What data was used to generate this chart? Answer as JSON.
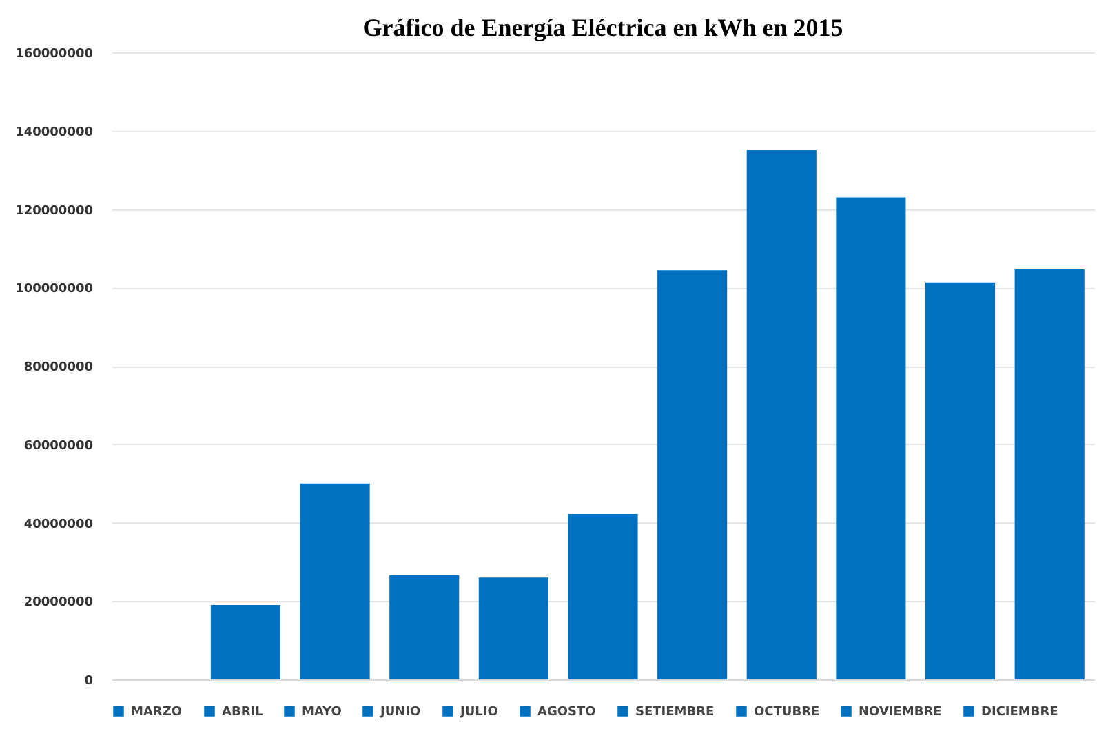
{
  "chart_data": {
    "type": "bar",
    "title": "Gráfico de Energía Eléctrica  en kWh  en 2015",
    "categories": [
      null,
      null,
      null,
      null,
      null,
      null,
      null,
      null,
      null,
      null,
      null
    ],
    "series": [
      {
        "name": "MARZO",
        "color": "#0070c0",
        "values": [
          null,
          19000000,
          null,
          null,
          null,
          null,
          null,
          null,
          null,
          null,
          null
        ]
      },
      {
        "name": "ABRIL",
        "color": "#0070c0",
        "values": [
          null,
          null,
          50000000,
          null,
          null,
          null,
          null,
          null,
          null,
          null,
          null
        ]
      },
      {
        "name": "MAYO",
        "color": "#0070c0",
        "values": [
          null,
          null,
          null,
          26600000,
          null,
          null,
          null,
          null,
          null,
          null,
          null
        ]
      },
      {
        "name": "JUNIO",
        "color": "#0070c0",
        "values": [
          null,
          null,
          null,
          null,
          26000000,
          null,
          null,
          null,
          null,
          null,
          null
        ]
      },
      {
        "name": "JULIO",
        "color": "#0070c0",
        "values": [
          null,
          null,
          null,
          null,
          null,
          42200000,
          null,
          null,
          null,
          null,
          null
        ]
      },
      {
        "name": "AGOSTO",
        "color": "#0070c0",
        "values": [
          null,
          null,
          null,
          null,
          null,
          null,
          104400000,
          null,
          null,
          null,
          null
        ]
      },
      {
        "name": "SETIEMBRE",
        "color": "#0070c0",
        "values": [
          null,
          null,
          null,
          null,
          null,
          null,
          null,
          135100000,
          null,
          null,
          null
        ]
      },
      {
        "name": "OCTUBRE",
        "color": "#0070c0",
        "values": [
          null,
          null,
          null,
          null,
          null,
          null,
          null,
          null,
          123000000,
          null,
          null
        ]
      },
      {
        "name": "NOVIEMBRE",
        "color": "#0070c0",
        "values": [
          null,
          null,
          null,
          null,
          null,
          null,
          null,
          null,
          null,
          101300000,
          null
        ]
      },
      {
        "name": "DICIEMBRE",
        "color": "#0070c0",
        "values": [
          null,
          null,
          null,
          null,
          null,
          null,
          null,
          null,
          null,
          null,
          104600000
        ]
      }
    ],
    "ylim": [
      0,
      160000000
    ],
    "yticks": [
      0,
      20000000,
      40000000,
      60000000,
      80000000,
      100000000,
      120000000,
      140000000,
      160000000
    ],
    "grid": "y",
    "legend": "bottom"
  }
}
